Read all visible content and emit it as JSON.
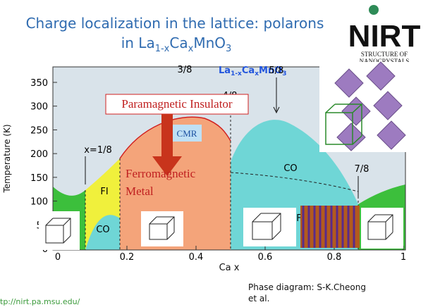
{
  "title": {
    "line1": "Charge localization in the lattice: polarons",
    "line2": [
      "in La",
      "1-x",
      "Ca",
      "x",
      "MnO",
      "3"
    ]
  },
  "logo": {
    "name": "NIRT",
    "line1": "STRUCTURE OF",
    "line2": "NANOCRYSTALS"
  },
  "diagram": {
    "title": [
      "La",
      "1-x",
      "Ca",
      "x",
      "MnO",
      "3"
    ],
    "y_axis_label": "Temperature (K)",
    "x_axis_label": "Ca x",
    "yticks": [
      "350",
      "300",
      "250",
      "200",
      "150",
      "100",
      "50",
      "0"
    ],
    "xticks": [
      "0",
      "0.2",
      "0.4",
      "0.6",
      "0.8",
      "1"
    ],
    "fractions": [
      "x=1/8",
      "3/8",
      "4/8",
      "5/8",
      "7/8"
    ],
    "paramagnetic": "Paramagnetic Insulator",
    "cmr": "CMR",
    "ferromagnetic": [
      "Ferromagnetic",
      "Metal"
    ],
    "fi": "FI",
    "co_small": "CO",
    "co_large": "CO",
    "f": "F"
  },
  "footer": {
    "url": "tp://nirt.pa.msu.edu/",
    "credit": [
      "Phase diagram: S-K.Cheong",
      "et al."
    ]
  }
}
